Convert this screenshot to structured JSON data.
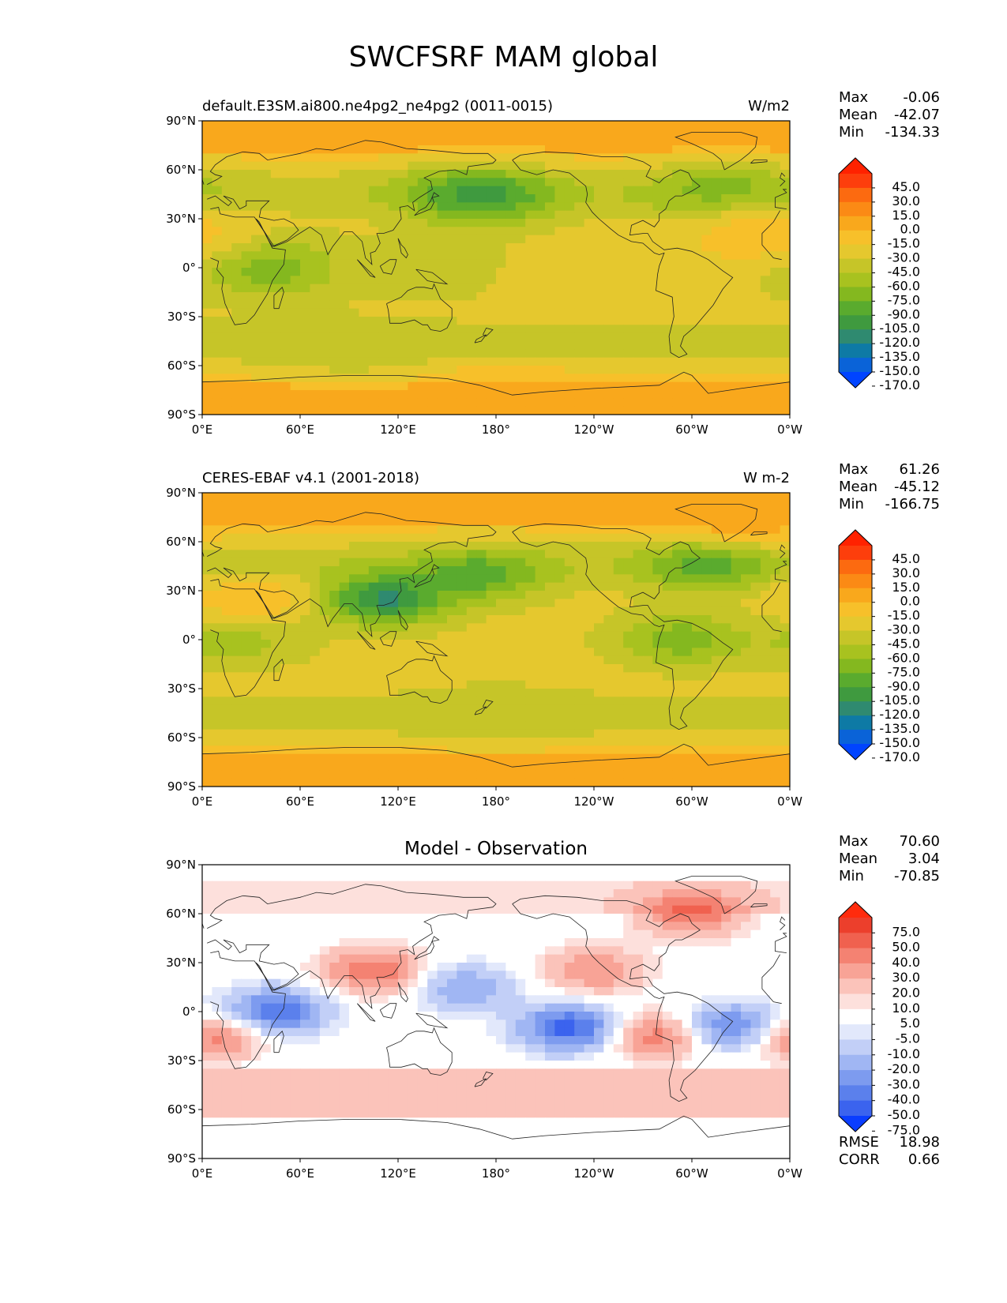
{
  "title": "SWCFSRF MAM global",
  "colors": {
    "abs_levels_colors": [
      "#0044ff",
      "#0a63d8",
      "#0e7aa5",
      "#2f8a70",
      "#3f9a3f",
      "#5aab2e",
      "#84b81f",
      "#a8c21f",
      "#c6c528",
      "#e5c82e",
      "#f7c02a",
      "#f9a81c",
      "#fb8a15",
      "#fc6a10",
      "#fd3e0c",
      "#ff2200"
    ],
    "diff_levels_colors": [
      "#0a3dff",
      "#3b63ee",
      "#5b80ec",
      "#7d9bef",
      "#a0b6f3",
      "#c2cff7",
      "#e2e8fb",
      "#ffffff",
      "#fde0dc",
      "#fbc3ba",
      "#f8a396",
      "#f48272",
      "#f0614f",
      "#ec3f2c",
      "#ff2b0d"
    ],
    "coast": "#222222"
  },
  "lat_ticks": [
    "90°N",
    "60°N",
    "30°N",
    "0°",
    "30°S",
    "60°S",
    "90°S"
  ],
  "lon_ticks": [
    "0°E",
    "60°E",
    "120°E",
    "180°",
    "120°W",
    "60°W",
    "0°W"
  ],
  "panels": [
    {
      "left_title": "default.E3SM.ai800.ne4pg2_ne4pg2 (0011-0015)",
      "right_title": "W/m2",
      "center_title": "",
      "stats": {
        "max_label": "Max",
        "max": "-0.06",
        "mean_label": "Mean",
        "mean": "-42.07",
        "min_label": "Min",
        "min": "-134.33"
      },
      "colorbar_levels": [
        "45.0",
        "30.0",
        "15.0",
        "0.0",
        "-15.0",
        "-30.0",
        "-45.0",
        "-60.0",
        "-75.0",
        "-90.0",
        "-105.0",
        "-120.0",
        "-135.0",
        "-150.0",
        "-170.0"
      ]
    },
    {
      "left_title": "CERES-EBAF v4.1 (2001-2018)",
      "right_title": "W m-2",
      "center_title": "",
      "stats": {
        "max_label": "Max",
        "max": "61.26",
        "mean_label": "Mean",
        "mean": "-45.12",
        "min_label": "Min",
        "min": "-166.75"
      },
      "colorbar_levels": [
        "45.0",
        "30.0",
        "15.0",
        "0.0",
        "-15.0",
        "-30.0",
        "-45.0",
        "-60.0",
        "-75.0",
        "-90.0",
        "-105.0",
        "-120.0",
        "-135.0",
        "-150.0",
        "-170.0"
      ]
    },
    {
      "left_title": "",
      "right_title": "",
      "center_title": "Model - Observation",
      "stats": {
        "max_label": "Max",
        "max": "70.60",
        "mean_label": "Mean",
        "mean": "3.04",
        "min_label": "Min",
        "min": "-70.85"
      },
      "colorbar_levels": [
        "75.0",
        "50.0",
        "40.0",
        "30.0",
        "20.0",
        "10.0",
        "5.0",
        "-5.0",
        "-10.0",
        "-20.0",
        "-30.0",
        "-40.0",
        "-50.0",
        "-75.0"
      ],
      "footer": {
        "rmse_label": "RMSE",
        "rmse": "18.98",
        "corr_label": "CORR",
        "corr": "0.66"
      }
    }
  ],
  "chart_data": [
    {
      "type": "heatmap",
      "projection": "PlateCarree, 0°E to 360°E",
      "title": "default.E3SM.ai800.ne4pg2_ne4pg2 (0011-0015)",
      "units": "W/m2",
      "x": "longitude",
      "y": "latitude",
      "xlim": [
        0,
        360
      ],
      "ylim": [
        -90,
        90
      ],
      "levels": [
        -170,
        -150,
        -135,
        -120,
        -105,
        -90,
        -75,
        -60,
        -45,
        -30,
        -15,
        0,
        15,
        30,
        45
      ],
      "stats": {
        "max": -0.06,
        "mean": -42.07,
        "min": -134.33
      },
      "features": [
        {
          "lon": 170,
          "lat": 45,
          "value": -120
        },
        {
          "lon": 320,
          "lat": 45,
          "value": -90
        },
        {
          "lon": 40,
          "lat": 0,
          "value": -90
        },
        {
          "lon": 150,
          "lat": 0,
          "value": -60
        },
        {
          "lon": 230,
          "lat": -5,
          "value": -30
        },
        {
          "lon": 340,
          "lat": 20,
          "value": -15
        },
        {
          "lon": 180,
          "lat": 85,
          "value": -15
        },
        {
          "lon": 180,
          "lat": -80,
          "value": -10
        },
        {
          "lon": 90,
          "lat": -50,
          "value": -55
        }
      ]
    },
    {
      "type": "heatmap",
      "projection": "PlateCarree, 0°E to 360°E",
      "title": "CERES-EBAF v4.1 (2001-2018)",
      "units": "W m-2",
      "x": "longitude",
      "y": "latitude",
      "xlim": [
        0,
        360
      ],
      "ylim": [
        -90,
        90
      ],
      "levels": [
        -170,
        -150,
        -135,
        -120,
        -105,
        -90,
        -75,
        -60,
        -45,
        -30,
        -15,
        0,
        15,
        30,
        45
      ],
      "stats": {
        "max": 61.26,
        "mean": -45.12,
        "min": -166.75
      },
      "features": [
        {
          "lon": 170,
          "lat": 40,
          "value": -105
        },
        {
          "lon": 110,
          "lat": 25,
          "value": -135
        },
        {
          "lon": 310,
          "lat": 45,
          "value": -105
        },
        {
          "lon": 295,
          "lat": 0,
          "value": -90
        },
        {
          "lon": 20,
          "lat": 0,
          "value": -75
        },
        {
          "lon": 180,
          "lat": -45,
          "value": -60
        },
        {
          "lon": 30,
          "lat": 25,
          "value": -15
        },
        {
          "lon": 330,
          "lat": 75,
          "value": 0
        }
      ]
    },
    {
      "type": "heatmap",
      "projection": "PlateCarree, 0°E to 360°E",
      "title": "Model - Observation",
      "x": "longitude",
      "y": "latitude",
      "xlim": [
        0,
        360
      ],
      "ylim": [
        -90,
        90
      ],
      "levels": [
        -75,
        -50,
        -40,
        -30,
        -20,
        -10,
        -5,
        5,
        10,
        20,
        30,
        40,
        50,
        75
      ],
      "stats": {
        "max": 70.6,
        "mean": 3.04,
        "min": -70.85,
        "rmse": 18.98,
        "corr": 0.66
      },
      "features": [
        {
          "lon": 105,
          "lat": 25,
          "value": 40
        },
        {
          "lon": 45,
          "lat": 0,
          "value": -50
        },
        {
          "lon": 225,
          "lat": -10,
          "value": -55
        },
        {
          "lon": 325,
          "lat": -10,
          "value": -50
        },
        {
          "lon": 160,
          "lat": 15,
          "value": -30
        },
        {
          "lon": 240,
          "lat": 25,
          "value": 30
        },
        {
          "lon": 280,
          "lat": -15,
          "value": 40
        },
        {
          "lon": 5,
          "lat": -15,
          "value": 40
        },
        {
          "lon": 300,
          "lat": 60,
          "value": 40
        }
      ]
    }
  ]
}
